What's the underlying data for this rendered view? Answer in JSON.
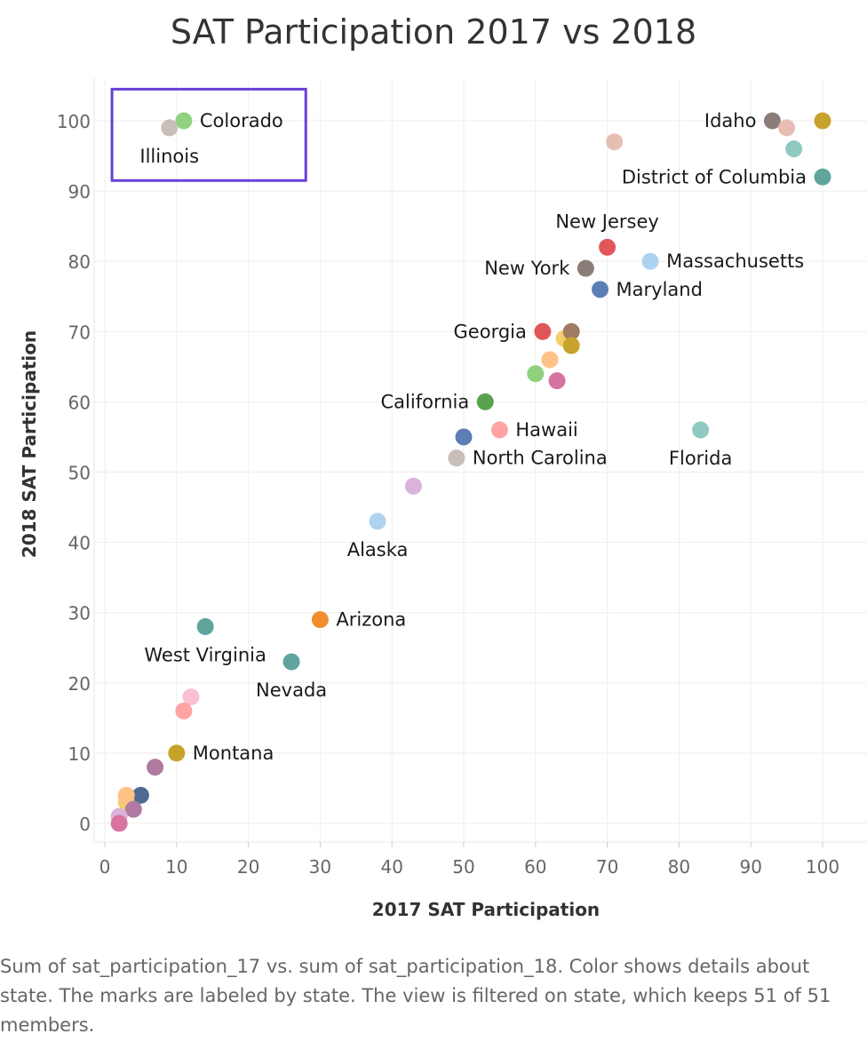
{
  "chart_data": {
    "type": "scatter",
    "title": "SAT Participation 2017 vs 2018",
    "xlabel": "2017 SAT Participation",
    "ylabel": "2018 SAT Participation",
    "xlim": [
      0,
      105
    ],
    "ylim": [
      -2,
      106
    ],
    "x_ticks": [
      0,
      10,
      20,
      30,
      40,
      50,
      60,
      70,
      80,
      90,
      100
    ],
    "y_ticks": [
      0,
      10,
      20,
      30,
      40,
      50,
      60,
      70,
      80,
      90,
      100
    ],
    "grid": true,
    "points": [
      {
        "x": 11,
        "y": 100,
        "color": "#8fd17f",
        "label": "Colorado",
        "label_pos": "right"
      },
      {
        "x": 9,
        "y": 99,
        "color": "#c9bfb8",
        "label": "Illinois",
        "label_pos": "below"
      },
      {
        "x": 93,
        "y": 100,
        "color": "#8c7d7a",
        "label": "Idaho",
        "label_pos": "left"
      },
      {
        "x": 100,
        "y": 100,
        "color": "#c8a32b",
        "label": "",
        "label_pos": ""
      },
      {
        "x": 95,
        "y": 99,
        "color": "#e6bfb2",
        "label": "",
        "label_pos": ""
      },
      {
        "x": 96,
        "y": 96,
        "color": "#8fc9c2",
        "label": "",
        "label_pos": ""
      },
      {
        "x": 71,
        "y": 97,
        "color": "#e6bfb2",
        "label": "",
        "label_pos": ""
      },
      {
        "x": 100,
        "y": 92,
        "color": "#5fa59d",
        "label": "District of Columbia",
        "label_pos": "left"
      },
      {
        "x": 70,
        "y": 82,
        "color": "#e15759",
        "label": "New Jersey",
        "label_pos": "above"
      },
      {
        "x": 67,
        "y": 79,
        "color": "#8c7d7a",
        "label": "New York",
        "label_pos": "left"
      },
      {
        "x": 76,
        "y": 80,
        "color": "#aed3f0",
        "label": "Massachusetts",
        "label_pos": "right"
      },
      {
        "x": 69,
        "y": 76,
        "color": "#5b7fb5",
        "label": "Maryland",
        "label_pos": "right"
      },
      {
        "x": 61,
        "y": 70,
        "color": "#e15759",
        "label": "Georgia",
        "label_pos": "left"
      },
      {
        "x": 64,
        "y": 69,
        "color": "#f3cf6c",
        "label": "",
        "label_pos": ""
      },
      {
        "x": 65,
        "y": 70,
        "color": "#a07c64",
        "label": "",
        "label_pos": ""
      },
      {
        "x": 65,
        "y": 68,
        "color": "#c8a32b",
        "label": "",
        "label_pos": ""
      },
      {
        "x": 62,
        "y": 66,
        "color": "#ffc185",
        "label": "",
        "label_pos": ""
      },
      {
        "x": 60,
        "y": 64,
        "color": "#8fd17f",
        "label": "",
        "label_pos": ""
      },
      {
        "x": 63,
        "y": 63,
        "color": "#d7739f",
        "label": "",
        "label_pos": ""
      },
      {
        "x": 53,
        "y": 60,
        "color": "#59a14f",
        "label": "California",
        "label_pos": "left"
      },
      {
        "x": 50,
        "y": 55,
        "color": "#5b7fb5",
        "label": "",
        "label_pos": ""
      },
      {
        "x": 55,
        "y": 56,
        "color": "#ffa3a3",
        "label": "Hawaii",
        "label_pos": "right"
      },
      {
        "x": 49,
        "y": 52,
        "color": "#c9bfb8",
        "label": "North Carolina",
        "label_pos": "right"
      },
      {
        "x": 83,
        "y": 56,
        "color": "#8fc9c2",
        "label": "Florida",
        "label_pos": "below"
      },
      {
        "x": 43,
        "y": 48,
        "color": "#d9b3d9",
        "label": "",
        "label_pos": ""
      },
      {
        "x": 38,
        "y": 43,
        "color": "#aed3f0",
        "label": "Alaska",
        "label_pos": "below"
      },
      {
        "x": 30,
        "y": 29,
        "color": "#f28e2b",
        "label": "Arizona",
        "label_pos": "right"
      },
      {
        "x": 14,
        "y": 28,
        "color": "#5fa59d",
        "label": "West Virginia",
        "label_pos": "below"
      },
      {
        "x": 26,
        "y": 23,
        "color": "#5fa59d",
        "label": "Nevada",
        "label_pos": "below"
      },
      {
        "x": 12,
        "y": 18,
        "color": "#fabfd2",
        "label": "",
        "label_pos": ""
      },
      {
        "x": 11,
        "y": 16,
        "color": "#ffa3a3",
        "label": "",
        "label_pos": ""
      },
      {
        "x": 10,
        "y": 10,
        "color": "#c8a32b",
        "label": "Montana",
        "label_pos": "right"
      },
      {
        "x": 7,
        "y": 8,
        "color": "#b07aa1",
        "label": "",
        "label_pos": ""
      },
      {
        "x": 5,
        "y": 4,
        "color": "#4e6a91",
        "label": "",
        "label_pos": ""
      },
      {
        "x": 3,
        "y": 3,
        "color": "#f3cf6c",
        "label": "",
        "label_pos": ""
      },
      {
        "x": 3,
        "y": 4,
        "color": "#ffc185",
        "label": "",
        "label_pos": ""
      },
      {
        "x": 4,
        "y": 2,
        "color": "#b07aa1",
        "label": "",
        "label_pos": ""
      },
      {
        "x": 2,
        "y": 1,
        "color": "#d9b3d9",
        "label": "",
        "label_pos": ""
      },
      {
        "x": 2,
        "y": 0,
        "color": "#d7739f",
        "label": "",
        "label_pos": ""
      }
    ],
    "highlight_box": {
      "x_range": [
        1,
        28
      ],
      "y_range": [
        91.5,
        104.5
      ],
      "color": "#6a3fd9"
    }
  },
  "caption": "Sum of sat_participation_17 vs. sum of sat_participation_18.  Color shows details about state.  The marks are labeled by state. The view is filtered on state, which keeps 51 of 51 members."
}
